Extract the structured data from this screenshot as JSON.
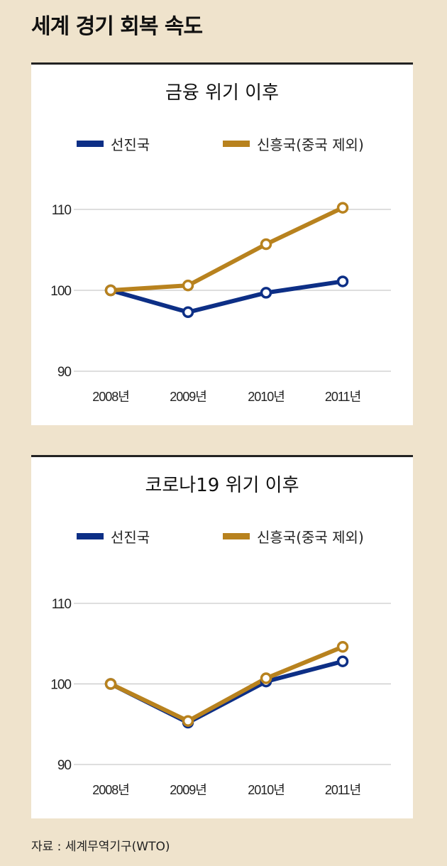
{
  "title": "세계 경기 회복 속도",
  "colors": {
    "advanced": "#0d2f86",
    "emerging": "#b8821e",
    "background": "#efe3cc"
  },
  "chart_data": [
    {
      "type": "line",
      "title": "금융 위기 이후",
      "categories": [
        "2008년",
        "2009년",
        "2010년",
        "2011년"
      ],
      "yticks": [
        90,
        100,
        110
      ],
      "ylim": [
        90,
        110
      ],
      "grid": true,
      "legend": "top",
      "series": [
        {
          "name": "선진국",
          "values": [
            100,
            97.3,
            99.7,
            101.1
          ]
        },
        {
          "name": "신흥국(중국 제외)",
          "values": [
            100,
            100.6,
            105.7,
            110.2
          ]
        }
      ]
    },
    {
      "type": "line",
      "title": "코로나19 위기 이후",
      "categories": [
        "2008년",
        "2009년",
        "2010년",
        "2011년"
      ],
      "yticks": [
        90,
        100,
        110
      ],
      "ylim": [
        90,
        110
      ],
      "grid": true,
      "legend": "top",
      "series": [
        {
          "name": "선진국",
          "values": [
            100,
            95.2,
            100.3,
            102.8
          ]
        },
        {
          "name": "신흥국(중국 제외)",
          "values": [
            100,
            95.4,
            100.7,
            104.6
          ]
        }
      ]
    }
  ],
  "source": "자료 : 세계무역기구(WTO)"
}
